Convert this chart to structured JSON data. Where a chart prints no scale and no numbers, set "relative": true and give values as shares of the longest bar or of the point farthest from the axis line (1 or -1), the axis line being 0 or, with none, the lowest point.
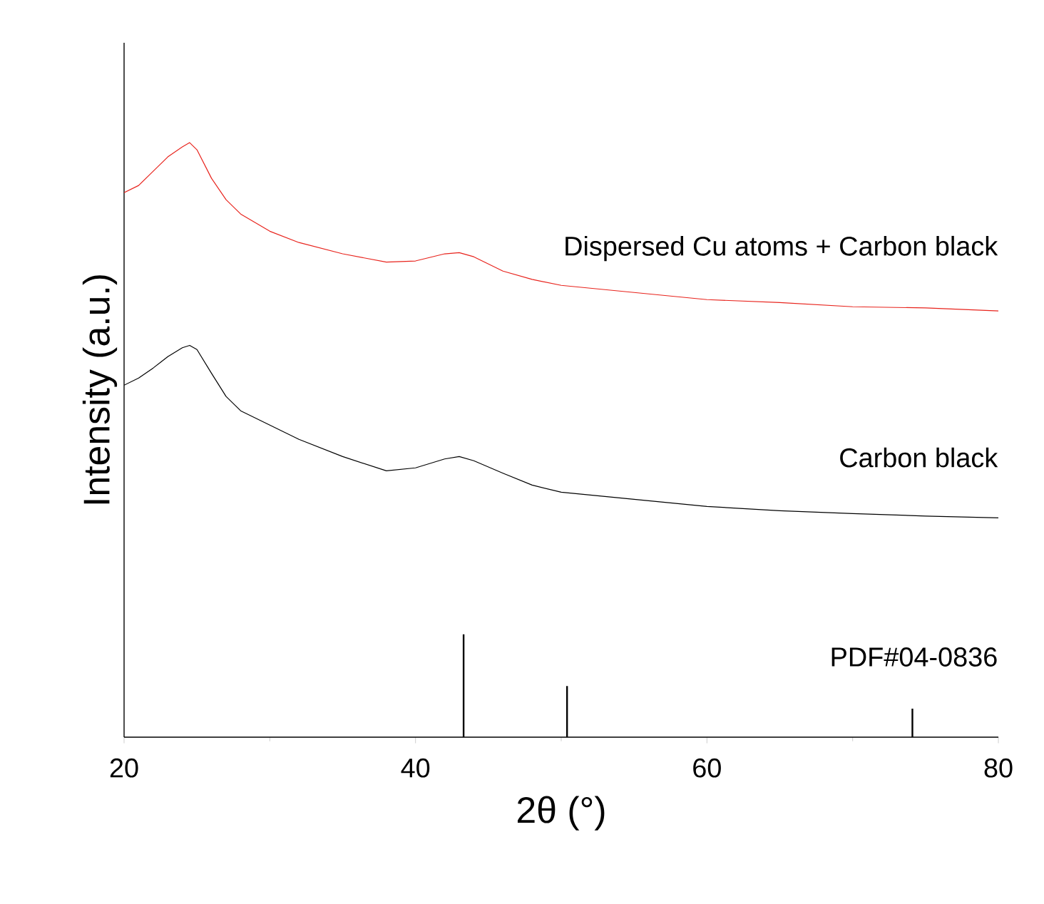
{
  "chart_data": {
    "type": "line",
    "xlabel": "2θ (°)",
    "ylabel": "Intensity (a.u.)",
    "relative": true,
    "xlim": [
      20,
      80
    ],
    "xticks": [
      20,
      40,
      60,
      80
    ],
    "series": [
      {
        "name": "Dispersed Cu atoms + Carbon black",
        "color": "#e8231c",
        "x": [
          20,
          21,
          22,
          23,
          24,
          24.5,
          25,
          26,
          27,
          28,
          30,
          32,
          35,
          38,
          40,
          42,
          43,
          44,
          46,
          48,
          50,
          55,
          60,
          65,
          70,
          75,
          80
        ],
        "values": [
          0.916,
          0.928,
          0.952,
          0.976,
          0.993,
          1,
          0.988,
          0.94,
          0.904,
          0.88,
          0.851,
          0.832,
          0.813,
          0.799,
          0.801,
          0.813,
          0.815,
          0.808,
          0.784,
          0.77,
          0.76,
          0.748,
          0.736,
          0.731,
          0.724,
          0.722,
          0.717
        ]
      },
      {
        "name": "Carbon black",
        "color": "#000000",
        "x": [
          20,
          21,
          22,
          23,
          24,
          24.5,
          25,
          26,
          27,
          28,
          30,
          32,
          35,
          38,
          40,
          42,
          43,
          44,
          46,
          48,
          50,
          55,
          60,
          65,
          70,
          75,
          80
        ],
        "values": [
          0.592,
          0.604,
          0.621,
          0.64,
          0.655,
          0.659,
          0.652,
          0.612,
          0.573,
          0.549,
          0.525,
          0.501,
          0.472,
          0.448,
          0.453,
          0.468,
          0.472,
          0.465,
          0.444,
          0.424,
          0.412,
          0.4,
          0.388,
          0.381,
          0.376,
          0.372,
          0.369
        ]
      },
      {
        "name": "PDF#04-0836",
        "type": "bar",
        "color": "#000000",
        "x": [
          43.3,
          50.4,
          74.1
        ],
        "values": [
          0.173,
          0.086,
          0.048
        ]
      }
    ]
  }
}
